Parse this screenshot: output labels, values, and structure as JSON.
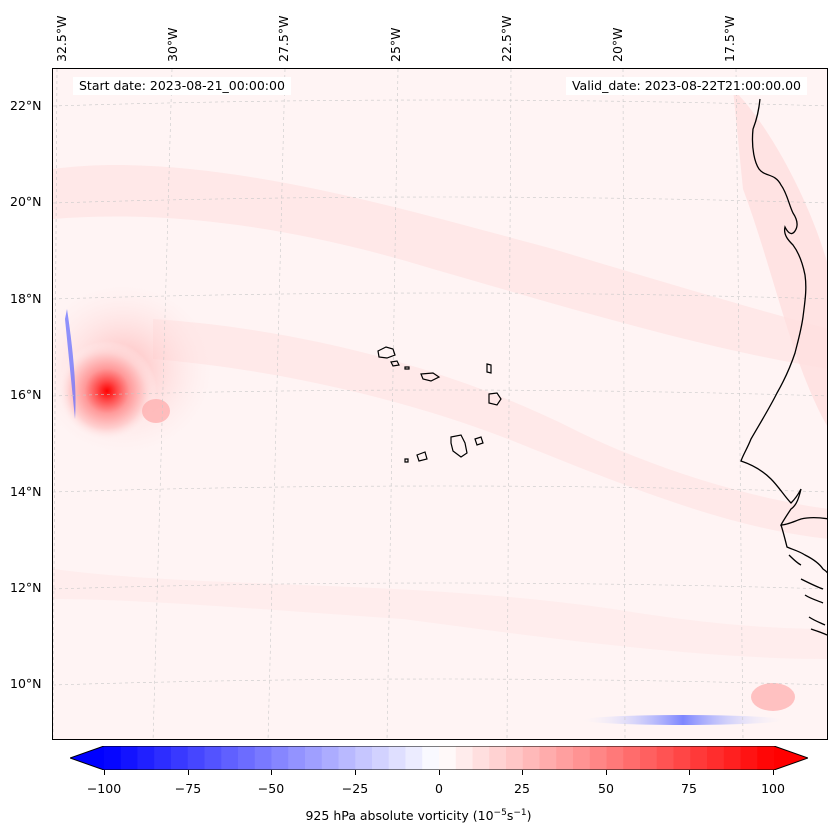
{
  "header": {
    "start_date": "Start date: 2023-08-21_00:00:00",
    "valid_date": "Valid_date: 2023-08-22T21:00:00.00"
  },
  "longitude_labels": [
    "32.5°W",
    "30°W",
    "27.5°W",
    "25°W",
    "22.5°W",
    "20°W",
    "17.5°W"
  ],
  "latitude_labels": [
    "22°N",
    "20°N",
    "18°N",
    "16°N",
    "14°N",
    "12°N",
    "10°N"
  ],
  "colorbar": {
    "ticks": [
      "−100",
      "−75",
      "−50",
      "−25",
      "0",
      "25",
      "50",
      "75",
      "100"
    ],
    "label_main": "925 hPa absolute vorticity (10",
    "label_exp1": "−5",
    "label_mid": "s",
    "label_exp2": "−1",
    "label_end": ")",
    "min": -100,
    "max": 100,
    "color_low": "#0000ff",
    "color_mid": "#ffffff",
    "color_high": "#ff0000"
  },
  "map": {
    "feature": "vorticity maximum near 16°N 32°W",
    "coastline_color": "#000000"
  }
}
